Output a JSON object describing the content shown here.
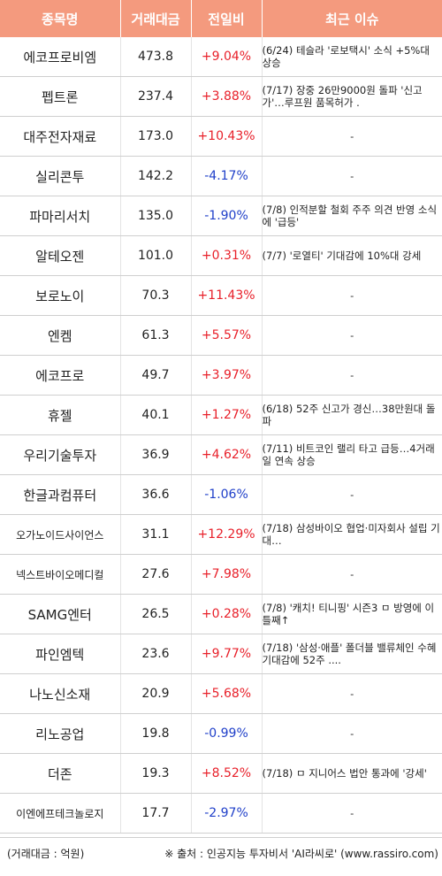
{
  "header": {
    "col_name": "종목명",
    "col_volume": "거래대금",
    "col_change": "전일비",
    "col_issue": "최근 이슈"
  },
  "rows": [
    {
      "name": "에코프로비엠",
      "volume": "473.8",
      "change": "+9.04%",
      "dir": "up",
      "issue": "(6/24) 테슬라 '로보택시' 소식 +5%대 상승"
    },
    {
      "name": "펩트론",
      "volume": "237.4",
      "change": "+3.88%",
      "dir": "up",
      "issue": "(7/17) 장중 26만9000원 돌파 '신고가'…루프원 품목허가 ."
    },
    {
      "name": "대주전자재료",
      "volume": "173.0",
      "change": "+10.43%",
      "dir": "up",
      "issue": "-"
    },
    {
      "name": "실리콘투",
      "volume": "142.2",
      "change": "-4.17%",
      "dir": "down",
      "issue": "-"
    },
    {
      "name": "파마리서치",
      "volume": "135.0",
      "change": "-1.90%",
      "dir": "down",
      "issue": "(7/8) 인적분할 철회 주주 의견 반영 소식에 '급등'"
    },
    {
      "name": "알테오젠",
      "volume": "101.0",
      "change": "+0.31%",
      "dir": "up",
      "issue": "(7/7) '로열티' 기대감에 10%대 강세"
    },
    {
      "name": "보로노이",
      "volume": "70.3",
      "change": "+11.43%",
      "dir": "up",
      "issue": "-"
    },
    {
      "name": "엔켐",
      "volume": "61.3",
      "change": "+5.57%",
      "dir": "up",
      "issue": "-"
    },
    {
      "name": "에코프로",
      "volume": "49.7",
      "change": "+3.97%",
      "dir": "up",
      "issue": "-"
    },
    {
      "name": "휴젤",
      "volume": "40.1",
      "change": "+1.27%",
      "dir": "up",
      "issue": "(6/18) 52주 신고가 경신…38만원대 돌파"
    },
    {
      "name": "우리기술투자",
      "volume": "36.9",
      "change": "+4.62%",
      "dir": "up",
      "issue": "(7/11) 비트코인 랠리 타고 급등…4거래일 연속 상승"
    },
    {
      "name": "한글과컴퓨터",
      "volume": "36.6",
      "change": "-1.06%",
      "dir": "down",
      "issue": "-"
    },
    {
      "name": "오가노이드사이언스",
      "volume": "31.1",
      "change": "+12.29%",
      "dir": "up",
      "issue": "(7/18) 삼성바이오 협업·미자회사 설립 기대…",
      "small": true
    },
    {
      "name": "넥스트바이오메디컬",
      "volume": "27.6",
      "change": "+7.98%",
      "dir": "up",
      "issue": "-",
      "small": true
    },
    {
      "name": "SAMG엔터",
      "volume": "26.5",
      "change": "+0.28%",
      "dir": "up",
      "issue": "(7/8) '캐치! 티니핑' 시즌3 ㅁ 방영에 이틀째↑"
    },
    {
      "name": "파인엠텍",
      "volume": "23.6",
      "change": "+9.77%",
      "dir": "up",
      "issue": "(7/18) '삼성·애플' 폴더블 밸류체인 수혜 기대감에 52주 ...."
    },
    {
      "name": "나노신소재",
      "volume": "20.9",
      "change": "+5.68%",
      "dir": "up",
      "issue": "-"
    },
    {
      "name": "리노공업",
      "volume": "19.8",
      "change": "-0.99%",
      "dir": "down",
      "issue": "-"
    },
    {
      "name": "더존",
      "volume": "19.3",
      "change": "+8.52%",
      "dir": "up",
      "issue": "(7/18) ㅁ 지니어스 법안 통과에 '강세'"
    },
    {
      "name": "이엔에프테크놀로지",
      "volume": "17.7",
      "change": "-2.97%",
      "dir": "down",
      "issue": "-",
      "small": true
    }
  ],
  "footer": {
    "unit_note": "(거래대금 : 억원)",
    "source_note": "※ 출처 : 인공지능 투자비서 'AI라씨로' (www.rassiro.com)"
  },
  "colors": {
    "header_bg": "#f49a7e",
    "up": "#e8202a",
    "down": "#1f3fc9"
  }
}
